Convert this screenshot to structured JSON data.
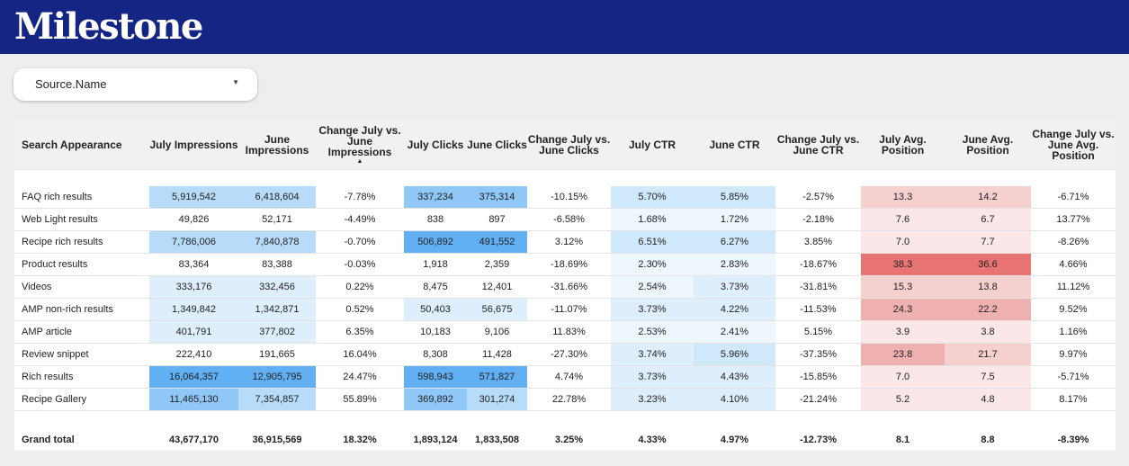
{
  "header": {
    "logo_text": "Milestone",
    "bg_color": "#142584"
  },
  "filter": {
    "label": "Source.Name",
    "caret": "▼"
  },
  "table": {
    "columns": [
      "Search Appearance",
      "July Impressions",
      "June Impressions",
      "Change July vs. June Impressions",
      "July Clicks",
      "June Clicks",
      "Change July vs. June Clicks",
      "July CTR",
      "June CTR",
      "Change July vs. June CTR",
      "July Avg. Position",
      "June Avg. Position",
      "Change July vs. June Avg. Position"
    ],
    "sort_indicator": "▲",
    "sorted_column": "Change July vs. June Impressions",
    "rows": [
      [
        "FAQ rich results",
        "5,919,542",
        "6,418,604",
        "-7.78%",
        "337,234",
        "375,314",
        "-10.15%",
        "5.70%",
        "5.85%",
        "-2.57%",
        "13.3",
        "14.2",
        "-6.71%"
      ],
      [
        "Web Light results",
        "49,826",
        "52,171",
        "-4.49%",
        "838",
        "897",
        "-6.58%",
        "1.68%",
        "1.72%",
        "-2.18%",
        "7.6",
        "6.7",
        "13.77%"
      ],
      [
        "Recipe rich results",
        "7,786,006",
        "7,840,878",
        "-0.70%",
        "506,892",
        "491,552",
        "3.12%",
        "6.51%",
        "6.27%",
        "3.85%",
        "7.0",
        "7.7",
        "-8.26%"
      ],
      [
        "Product results",
        "83,364",
        "83,388",
        "-0.03%",
        "1,918",
        "2,359",
        "-18.69%",
        "2.30%",
        "2.83%",
        "-18.67%",
        "38.3",
        "36.6",
        "4.66%"
      ],
      [
        "Videos",
        "333,176",
        "332,456",
        "0.22%",
        "8,475",
        "12,401",
        "-31.66%",
        "2.54%",
        "3.73%",
        "-31.81%",
        "15.3",
        "13.8",
        "11.12%"
      ],
      [
        "AMP non-rich results",
        "1,349,842",
        "1,342,871",
        "0.52%",
        "50,403",
        "56,675",
        "-11.07%",
        "3.73%",
        "4.22%",
        "-11.53%",
        "24.3",
        "22.2",
        "9.52%"
      ],
      [
        "AMP article",
        "401,791",
        "377,802",
        "6.35%",
        "10,183",
        "9,106",
        "11.83%",
        "2.53%",
        "2.41%",
        "5.15%",
        "3.9",
        "3.8",
        "1.16%"
      ],
      [
        "Review snippet",
        "222,410",
        "191,665",
        "16.04%",
        "8,308",
        "11,428",
        "-27.30%",
        "3.74%",
        "5.96%",
        "-37.35%",
        "23.8",
        "21.7",
        "9.97%"
      ],
      [
        "Rich results",
        "16,064,357",
        "12,905,795",
        "24.47%",
        "598,943",
        "571,827",
        "4.74%",
        "3.73%",
        "4.43%",
        "-15.85%",
        "7.0",
        "7.5",
        "-5.71%"
      ],
      [
        "Recipe Gallery",
        "11,465,130",
        "7,354,857",
        "55.89%",
        "369,892",
        "301,274",
        "22.78%",
        "3.23%",
        "4.10%",
        "-21.24%",
        "5.2",
        "4.8",
        "8.17%"
      ]
    ],
    "total": [
      "Grand total",
      "43,677,170",
      "36,915,569",
      "18.32%",
      "1,893,124",
      "1,833,508",
      "3.25%",
      "4.33%",
      "4.97%",
      "-12.73%",
      "8.1",
      "8.8",
      "-8.39%"
    ],
    "heat_colors": {
      "impressions": [
        "#deeefc",
        "#b7dcfa",
        "#8fc7f6",
        "#61b0f3"
      ],
      "clicks": [
        "#deeefc",
        "#b7dcfa",
        "#8fc7f6",
        "#61b0f3"
      ],
      "ctr": [
        "#eef7fe",
        "#deeefc",
        "#d0e8fb"
      ],
      "position": [
        "#fbe7e7",
        "#f6cfcf",
        "#efb0b0",
        "#e87474"
      ]
    }
  }
}
